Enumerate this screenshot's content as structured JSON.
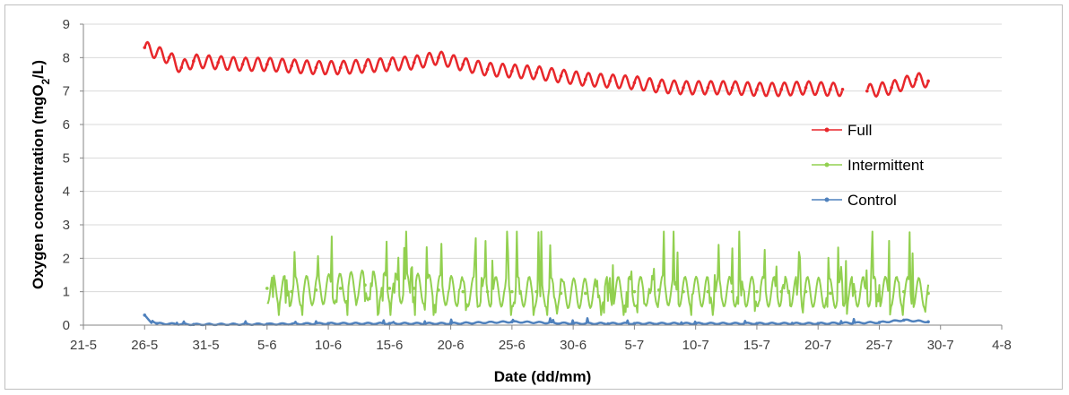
{
  "chart_data": {
    "type": "line",
    "title": "",
    "xlabel": "Date (dd/mm)",
    "ylabel": {
      "pre": "Oxygen concentration (mgO",
      "sub": "2",
      "post": "/L)"
    },
    "x_ticks": [
      "21-5",
      "26-5",
      "31-5",
      "5-6",
      "10-6",
      "15-6",
      "20-6",
      "25-6",
      "30-6",
      "5-7",
      "10-7",
      "15-7",
      "20-7",
      "25-7",
      "30-7",
      "4-8"
    ],
    "y_ticks": [
      "0",
      "1",
      "2",
      "3",
      "4",
      "5",
      "6",
      "7",
      "8",
      "9"
    ],
    "xlim": [
      "21-5",
      "4-8"
    ],
    "ylim": [
      0,
      9
    ],
    "grid": "horizontal",
    "legend_position": "right",
    "series": [
      {
        "name": "Full",
        "color": "#e8272b",
        "x": [
          "26-5",
          "28-5",
          "29-5",
          "30-5",
          "1-6",
          "3-6",
          "5-6",
          "7-6",
          "9-6",
          "11-6",
          "13-6",
          "15-6",
          "17-6",
          "19-6",
          "21-6",
          "23-6",
          "25-6",
          "27-6",
          "29-6",
          "1-7",
          "3-7",
          "5-7",
          "7-7",
          "9-7",
          "11-7",
          "13-7",
          "15-7",
          "17-7",
          "19-7",
          "21-7",
          "22-7",
          "23-7",
          "24-7",
          "26-7",
          "28-7",
          "29-7"
        ],
        "y": [
          8.3,
          8.0,
          7.7,
          7.9,
          7.85,
          7.8,
          7.8,
          7.75,
          7.7,
          7.7,
          7.75,
          7.8,
          7.85,
          8.0,
          7.8,
          7.65,
          7.6,
          7.55,
          7.45,
          7.35,
          7.3,
          7.25,
          7.15,
          7.1,
          7.1,
          7.1,
          7.05,
          7.05,
          7.1,
          7.05,
          7.05,
          null,
          7.0,
          7.1,
          7.35,
          7.3
        ],
        "oscillation_amplitude": 0.2
      },
      {
        "name": "Intermittent",
        "color": "#92d050",
        "x": [
          "5-6",
          "7-6",
          "9-6",
          "11-6",
          "13-6",
          "15-6",
          "17-6",
          "19-6",
          "21-6",
          "23-6",
          "25-6",
          "27-6",
          "29-6",
          "1-7",
          "3-7",
          "5-7",
          "7-7",
          "9-7",
          "11-7",
          "13-7",
          "15-7",
          "17-7",
          "19-7",
          "21-7",
          "23-7",
          "25-7",
          "27-7",
          "29-7"
        ],
        "y": [
          1.1,
          1.0,
          1.05,
          1.1,
          1.2,
          1.1,
          1.1,
          1.05,
          1.0,
          1.0,
          1.0,
          1.0,
          0.95,
          0.95,
          1.0,
          1.0,
          1.05,
          1.0,
          1.0,
          1.0,
          1.0,
          1.0,
          1.0,
          0.95,
          1.0,
          1.0,
          1.0,
          0.95
        ],
        "peak_max": 2.8,
        "trough_min": 0.3
      },
      {
        "name": "Control",
        "color": "#4f81bd",
        "x": [
          "26-5",
          "27-5",
          "30-5",
          "5-6",
          "10-6",
          "15-6",
          "20-6",
          "25-6",
          "30-6",
          "5-7",
          "10-7",
          "15-7",
          "20-7",
          "25-7",
          "27-7",
          "29-7"
        ],
        "y": [
          0.3,
          0.05,
          0.02,
          0.03,
          0.05,
          0.05,
          0.05,
          0.1,
          0.05,
          0.05,
          0.05,
          0.05,
          0.05,
          0.08,
          0.15,
          0.1
        ],
        "peak_max": 0.4
      }
    ]
  }
}
